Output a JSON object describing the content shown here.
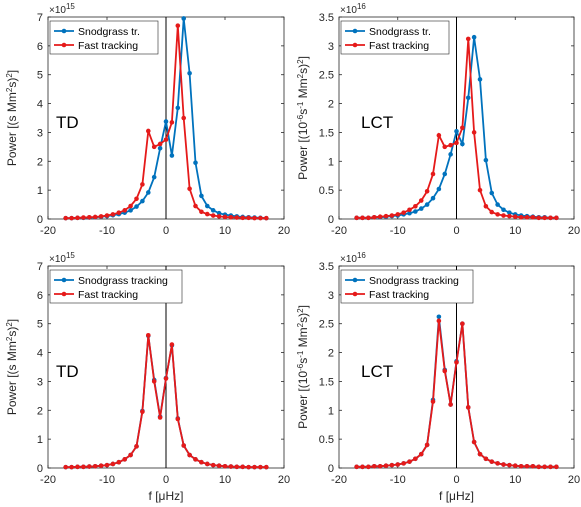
{
  "chart_data": [
    {
      "type": "line",
      "panel": "top-left",
      "panel_label": "TD",
      "ylabel": "Power [(s Mm^2s)^2]",
      "xlabel": "",
      "y_exponent": "×10^15",
      "xlim": [
        -20,
        20
      ],
      "ylim": [
        0,
        7
      ],
      "xticks": [
        -20,
        -10,
        0,
        10,
        20
      ],
      "yticks": [
        0,
        1,
        2,
        3,
        4,
        5,
        6,
        7
      ],
      "legend_position": "top-left",
      "x": [
        -17,
        -16,
        -15,
        -14,
        -13,
        -12,
        -11,
        -10,
        -9,
        -8,
        -7,
        -6,
        -5,
        -4,
        -3,
        -2,
        -1,
        0,
        1,
        2,
        3,
        4,
        5,
        6,
        7,
        8,
        9,
        10,
        11,
        12,
        13,
        14,
        15,
        16,
        17
      ],
      "series": [
        {
          "name": "Snodgrass tr.",
          "color": "#0072BD",
          "values": [
            0.03,
            0.03,
            0.04,
            0.04,
            0.05,
            0.06,
            0.08,
            0.1,
            0.13,
            0.17,
            0.22,
            0.3,
            0.43,
            0.62,
            0.92,
            1.45,
            2.45,
            3.38,
            2.2,
            3.85,
            6.95,
            5.05,
            1.95,
            0.8,
            0.45,
            0.3,
            0.2,
            0.15,
            0.12,
            0.09,
            0.07,
            0.06,
            0.05,
            0.04,
            0.03
          ]
        },
        {
          "name": "Fast tracking",
          "color": "#E51A1A",
          "values": [
            0.03,
            0.03,
            0.04,
            0.05,
            0.06,
            0.07,
            0.09,
            0.12,
            0.16,
            0.22,
            0.3,
            0.45,
            0.7,
            1.2,
            3.05,
            2.5,
            2.6,
            2.75,
            3.35,
            6.7,
            3.5,
            1.05,
            0.45,
            0.25,
            0.17,
            0.12,
            0.09,
            0.07,
            0.06,
            0.05,
            0.04,
            0.04,
            0.03,
            0.03,
            0.03
          ]
        }
      ]
    },
    {
      "type": "line",
      "panel": "top-right",
      "panel_label": "LCT",
      "ylabel": "Power [(10^-6s^-1 Mm^2s)^2]",
      "xlabel": "",
      "y_exponent": "×10^16",
      "xlim": [
        -20,
        20
      ],
      "ylim": [
        0,
        3.5
      ],
      "xticks": [
        -20,
        -10,
        0,
        10,
        20
      ],
      "yticks": [
        0,
        0.5,
        1,
        1.5,
        2,
        2.5,
        3,
        3.5
      ],
      "legend_position": "top-left",
      "x": [
        -17,
        -16,
        -15,
        -14,
        -13,
        -12,
        -11,
        -10,
        -9,
        -8,
        -7,
        -6,
        -5,
        -4,
        -3,
        -2,
        -1,
        0,
        1,
        2,
        3,
        4,
        5,
        6,
        7,
        8,
        9,
        10,
        11,
        12,
        13,
        14,
        15,
        16,
        17
      ],
      "series": [
        {
          "name": "Snodgrass tr.",
          "color": "#0072BD",
          "values": [
            0.02,
            0.02,
            0.02,
            0.03,
            0.03,
            0.04,
            0.05,
            0.06,
            0.08,
            0.1,
            0.13,
            0.18,
            0.25,
            0.36,
            0.52,
            0.78,
            1.12,
            1.52,
            1.3,
            2.1,
            3.15,
            2.42,
            1.02,
            0.45,
            0.25,
            0.16,
            0.11,
            0.08,
            0.06,
            0.05,
            0.04,
            0.03,
            0.03,
            0.02,
            0.02
          ]
        },
        {
          "name": "Fast tracking",
          "color": "#E51A1A",
          "values": [
            0.02,
            0.02,
            0.02,
            0.03,
            0.04,
            0.05,
            0.06,
            0.08,
            0.11,
            0.16,
            0.22,
            0.32,
            0.48,
            0.78,
            1.45,
            1.25,
            1.28,
            1.32,
            1.58,
            3.12,
            1.5,
            0.5,
            0.22,
            0.12,
            0.08,
            0.06,
            0.05,
            0.04,
            0.03,
            0.03,
            0.03,
            0.02,
            0.02,
            0.02,
            0.02
          ]
        }
      ]
    },
    {
      "type": "line",
      "panel": "bottom-left",
      "panel_label": "TD",
      "ylabel": "Power [(s Mm^2s)^2]",
      "xlabel": "f [μHz]",
      "y_exponent": "×10^15",
      "xlim": [
        -20,
        20
      ],
      "ylim": [
        0,
        7
      ],
      "xticks": [
        -20,
        -10,
        0,
        10,
        20
      ],
      "yticks": [
        0,
        1,
        2,
        3,
        4,
        5,
        6,
        7
      ],
      "legend_position": "top-left",
      "x": [
        -17,
        -16,
        -15,
        -14,
        -13,
        -12,
        -11,
        -10,
        -9,
        -8,
        -7,
        -6,
        -5,
        -4,
        -3,
        -2,
        -1,
        0,
        1,
        2,
        3,
        4,
        5,
        6,
        7,
        8,
        9,
        10,
        11,
        12,
        13,
        14,
        15,
        16,
        17
      ],
      "series": [
        {
          "name": "Snodgrass tracking",
          "color": "#0072BD",
          "values": [
            0.03,
            0.03,
            0.04,
            0.04,
            0.05,
            0.06,
            0.08,
            0.1,
            0.14,
            0.2,
            0.3,
            0.45,
            0.75,
            1.98,
            4.58,
            3.05,
            1.78,
            3.12,
            4.25,
            1.72,
            0.78,
            0.45,
            0.3,
            0.2,
            0.14,
            0.1,
            0.08,
            0.06,
            0.05,
            0.04,
            0.04,
            0.03,
            0.03,
            0.03,
            0.03
          ]
        },
        {
          "name": "Fast tracking",
          "color": "#E51A1A",
          "values": [
            0.03,
            0.03,
            0.04,
            0.04,
            0.05,
            0.06,
            0.08,
            0.1,
            0.14,
            0.2,
            0.3,
            0.45,
            0.75,
            1.95,
            4.6,
            3.0,
            1.75,
            3.1,
            4.28,
            1.7,
            0.78,
            0.45,
            0.3,
            0.2,
            0.14,
            0.1,
            0.08,
            0.06,
            0.05,
            0.04,
            0.04,
            0.03,
            0.03,
            0.03,
            0.03
          ]
        }
      ]
    },
    {
      "type": "line",
      "panel": "bottom-right",
      "panel_label": "LCT",
      "ylabel": "Power [(10^-6s^-1 Mm^2s)^2]",
      "xlabel": "f [μHz]",
      "y_exponent": "×10^16",
      "xlim": [
        -20,
        20
      ],
      "ylim": [
        0,
        3.5
      ],
      "xticks": [
        -20,
        -10,
        0,
        10,
        20
      ],
      "yticks": [
        0,
        0.5,
        1,
        1.5,
        2,
        2.5,
        3,
        3.5
      ],
      "legend_position": "top-left",
      "x": [
        -17,
        -16,
        -15,
        -14,
        -13,
        -12,
        -11,
        -10,
        -9,
        -8,
        -7,
        -6,
        -5,
        -4,
        -3,
        -2,
        -1,
        0,
        1,
        2,
        3,
        4,
        5,
        6,
        7,
        8,
        9,
        10,
        11,
        12,
        13,
        14,
        15,
        16,
        17
      ],
      "series": [
        {
          "name": "Snodgrass tracking",
          "color": "#0072BD",
          "values": [
            0.02,
            0.02,
            0.02,
            0.03,
            0.03,
            0.04,
            0.05,
            0.06,
            0.08,
            0.11,
            0.16,
            0.24,
            0.4,
            1.18,
            2.62,
            1.7,
            1.1,
            1.85,
            2.5,
            1.05,
            0.45,
            0.24,
            0.16,
            0.11,
            0.08,
            0.06,
            0.05,
            0.04,
            0.03,
            0.03,
            0.03,
            0.02,
            0.02,
            0.02,
            0.02
          ]
        },
        {
          "name": "Fast tracking",
          "color": "#E51A1A",
          "values": [
            0.02,
            0.02,
            0.02,
            0.03,
            0.03,
            0.04,
            0.05,
            0.06,
            0.08,
            0.11,
            0.16,
            0.24,
            0.4,
            1.15,
            2.55,
            1.68,
            1.1,
            1.83,
            2.5,
            1.05,
            0.45,
            0.24,
            0.16,
            0.11,
            0.08,
            0.06,
            0.05,
            0.04,
            0.03,
            0.03,
            0.03,
            0.02,
            0.02,
            0.02,
            0.02
          ]
        }
      ]
    }
  ]
}
